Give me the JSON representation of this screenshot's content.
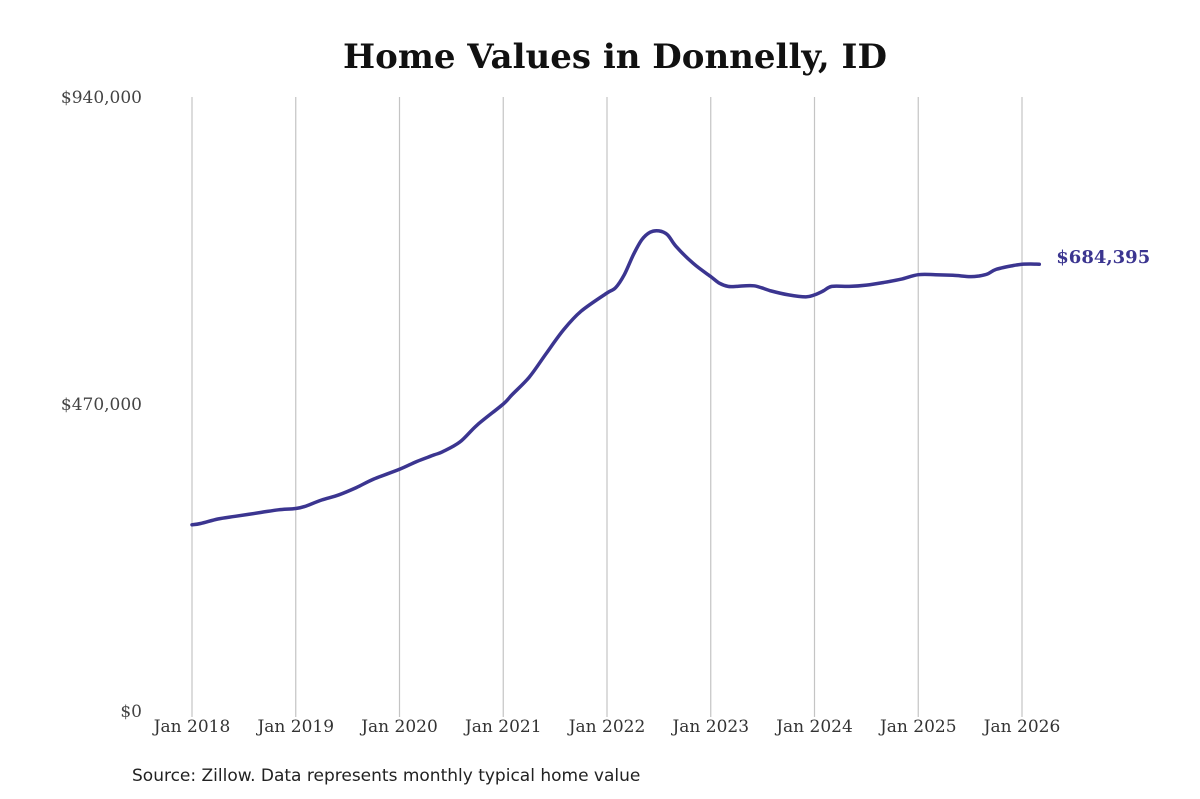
{
  "colors": {
    "line": "#3b3590",
    "grid": "#c4c4c4"
  },
  "chart_data": {
    "type": "line",
    "title": "Home Values in Donnelly, ID",
    "xlabel": "",
    "ylabel": "",
    "ylim": [
      0,
      940000
    ],
    "xlim": [
      "2018-01",
      "2026-03"
    ],
    "grid": "vertical",
    "yticks": [
      {
        "value": 0,
        "label": "$0"
      },
      {
        "value": 470000,
        "label": "$470,000"
      },
      {
        "value": 940000,
        "label": "$940,000"
      }
    ],
    "xticks": [
      {
        "date": "2018-01",
        "label": "Jan 2018"
      },
      {
        "date": "2019-01",
        "label": "Jan 2019"
      },
      {
        "date": "2020-01",
        "label": "Jan 2020"
      },
      {
        "date": "2021-01",
        "label": "Jan 2021"
      },
      {
        "date": "2022-01",
        "label": "Jan 2022"
      },
      {
        "date": "2023-01",
        "label": "Jan 2023"
      },
      {
        "date": "2024-01",
        "label": "Jan 2024"
      },
      {
        "date": "2025-01",
        "label": "Jan 2025"
      },
      {
        "date": "2026-01",
        "label": "Jan 2026"
      }
    ],
    "end_label": "$684,395",
    "series": [
      {
        "name": "",
        "x": [
          "2018-01",
          "2018-02",
          "2018-04",
          "2018-06",
          "2018-09",
          "2018-11",
          "2019-01",
          "2019-02",
          "2019-04",
          "2019-06",
          "2019-08",
          "2019-10",
          "2020-01",
          "2020-03",
          "2020-05",
          "2020-06",
          "2020-08",
          "2020-10",
          "2021-01",
          "2021-02",
          "2021-04",
          "2021-06",
          "2021-08",
          "2021-10",
          "2022-01",
          "2022-02",
          "2022-03",
          "2022-04",
          "2022-05",
          "2022-06",
          "2022-07",
          "2022-08",
          "2022-09",
          "2022-11",
          "2023-01",
          "2023-02",
          "2023-03",
          "2023-04",
          "2023-06",
          "2023-08",
          "2023-10",
          "2023-12",
          "2024-01",
          "2024-02",
          "2024-03",
          "2024-05",
          "2024-07",
          "2024-09",
          "2024-11",
          "2025-01",
          "2025-03",
          "2025-05",
          "2025-07",
          "2025-08",
          "2025-09",
          "2025-10",
          "2025-12",
          "2026-01",
          "2026-02",
          "2026-03"
        ],
        "values": [
          285000,
          287000,
          294000,
          298000,
          304000,
          308000,
          310000,
          313000,
          323000,
          331000,
          342000,
          355000,
          370000,
          382000,
          392000,
          397000,
          412000,
          438000,
          470000,
          484000,
          511000,
          548000,
          584000,
          612000,
          640000,
          648000,
          668000,
          697000,
          721000,
          733000,
          735000,
          729000,
          711000,
          685000,
          665000,
          655000,
          650000,
          650000,
          651000,
          643000,
          637000,
          634000,
          637000,
          643000,
          650000,
          650000,
          652000,
          656000,
          661000,
          668000,
          668000,
          667000,
          665000,
          666000,
          669000,
          676000,
          682000,
          684000,
          684395,
          684000
        ]
      }
    ]
  },
  "source_note": "Source: Zillow. Data represents monthly typical home value"
}
